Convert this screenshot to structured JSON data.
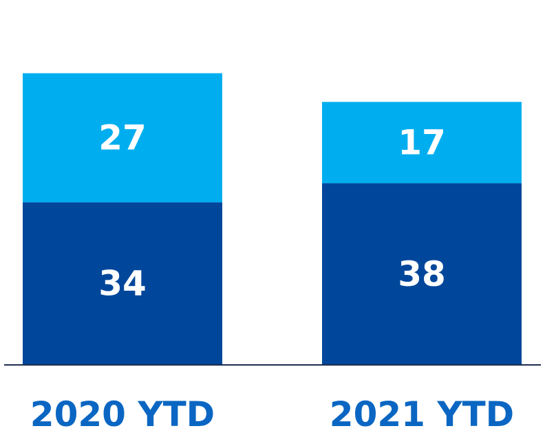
{
  "chart_data": {
    "type": "bar",
    "stacked": true,
    "categories": [
      "2020 YTD",
      "2021 YTD"
    ],
    "series": [
      {
        "values": [
          34,
          38
        ],
        "color": "#00479b"
      },
      {
        "values": [
          27,
          17
        ],
        "color": "#00aeef"
      }
    ],
    "ylim": [
      0,
      72
    ],
    "grid": false,
    "legend": "none",
    "category_label_color": "#0a66c2",
    "axis_color": "#1f2d4d"
  }
}
